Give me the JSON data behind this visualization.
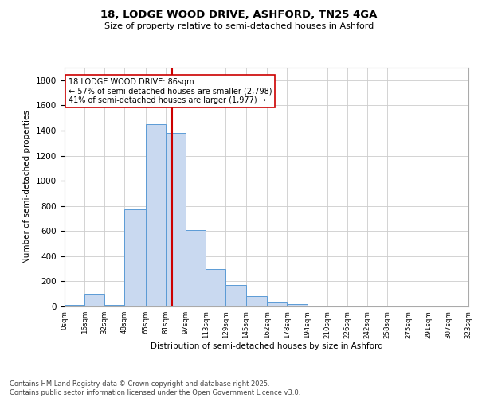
{
  "title_line1": "18, LODGE WOOD DRIVE, ASHFORD, TN25 4GA",
  "title_line2": "Size of property relative to semi-detached houses in Ashford",
  "xlabel": "Distribution of semi-detached houses by size in Ashford",
  "ylabel": "Number of semi-detached properties",
  "bin_edges": [
    0,
    16,
    32,
    48,
    65,
    81,
    97,
    113,
    129,
    145,
    162,
    178,
    194,
    210,
    226,
    242,
    258,
    275,
    291,
    307,
    323
  ],
  "bar_heights": [
    15,
    100,
    10,
    775,
    1450,
    1380,
    610,
    300,
    170,
    85,
    30,
    20,
    5,
    0,
    0,
    0,
    5,
    0,
    0,
    5
  ],
  "bar_color": "#c9d9f0",
  "bar_edge_color": "#5b9bd5",
  "vline_color": "#cc0000",
  "vline_x": 86,
  "annotation_text": "18 LODGE WOOD DRIVE: 86sqm\n← 57% of semi-detached houses are smaller (2,798)\n41% of semi-detached houses are larger (1,977) →",
  "annotation_box_color": "#ffffff",
  "annotation_box_edge": "#cc0000",
  "ylim": [
    0,
    1900
  ],
  "yticks": [
    0,
    200,
    400,
    600,
    800,
    1000,
    1200,
    1400,
    1600,
    1800
  ],
  "grid_color": "#cccccc",
  "background_color": "#ffffff",
  "footer_line1": "Contains HM Land Registry data © Crown copyright and database right 2025.",
  "footer_line2": "Contains public sector information licensed under the Open Government Licence v3.0."
}
